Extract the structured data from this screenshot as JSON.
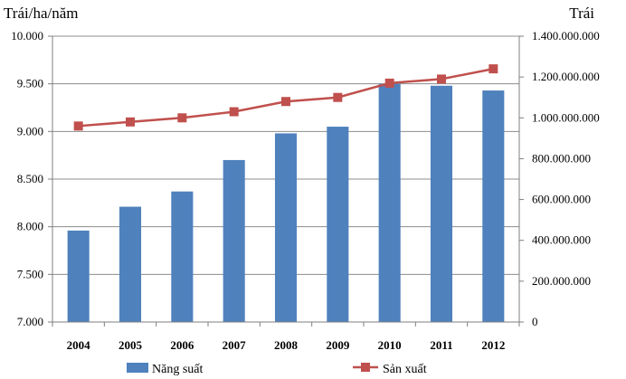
{
  "chart_data": {
    "type": "bar",
    "categories": [
      "2004",
      "2005",
      "2006",
      "2007",
      "2008",
      "2009",
      "2010",
      "2011",
      "2012"
    ],
    "series": [
      {
        "name": "Năng suất",
        "type": "bar",
        "axis": "left",
        "color": "#4F81BD",
        "values": [
          7960,
          8210,
          8370,
          8700,
          8980,
          9050,
          9500,
          9480,
          9430
        ]
      },
      {
        "name": "Sản xuất",
        "type": "line",
        "axis": "right",
        "color": "#C0504D",
        "values": [
          960000000,
          980000000,
          1000000000,
          1030000000,
          1080000000,
          1100000000,
          1170000000,
          1190000000,
          1240000000
        ]
      }
    ],
    "left_axis": {
      "label": "Trái/ha/năm",
      "ylim": [
        7000,
        10000
      ],
      "ticks": [
        7000,
        7500,
        8000,
        8500,
        9000,
        9500,
        10000
      ],
      "tick_labels": [
        "7.000",
        "7.500",
        "8.000",
        "8.500",
        "9.000",
        "9.500",
        "10.000"
      ]
    },
    "right_axis": {
      "label": "Trái",
      "ylim": [
        0,
        1400000000
      ],
      "ticks": [
        0,
        200000000,
        400000000,
        600000000,
        800000000,
        1000000000,
        1200000000,
        1400000000
      ],
      "tick_labels": [
        "0",
        "200.000.000",
        "400.000.000",
        "600.000.000",
        "800.000.000",
        "1.000.000.000",
        "1.200.000.000",
        "1.400.000.000"
      ]
    },
    "grid": true,
    "legend": "bottom"
  }
}
